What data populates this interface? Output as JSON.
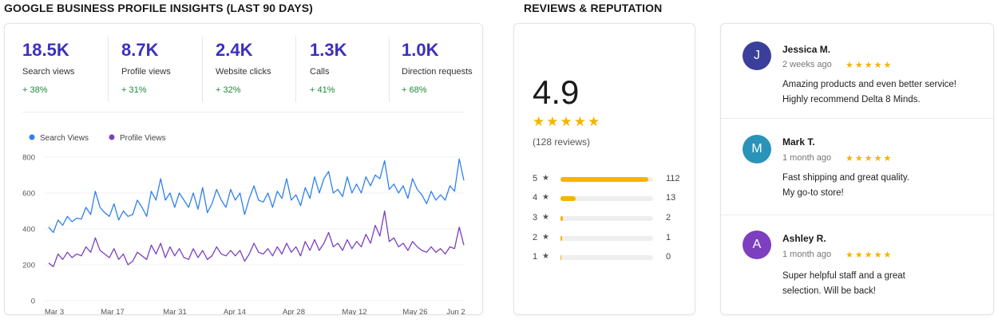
{
  "insights": {
    "title": "GOOGLE BUSINESS PROFILE INSIGHTS (LAST 90 DAYS)",
    "metrics": [
      {
        "value": "18.5K",
        "label": "Search views",
        "delta": "+ 38%"
      },
      {
        "value": "8.7K",
        "label": "Profile views",
        "delta": "+ 31%"
      },
      {
        "value": "2.4K",
        "label": "Website clicks",
        "delta": "+ 32%"
      },
      {
        "value": "1.3K",
        "label": "Calls",
        "delta": "+ 41%"
      },
      {
        "value": "1.0K",
        "label": "Direction requests",
        "delta": "+ 68%"
      }
    ],
    "colors": {
      "accent": "#3b2fbf",
      "positive": "#1e8a3a"
    }
  },
  "chart_data": {
    "type": "line",
    "title": "",
    "xlabel": "",
    "ylabel": "",
    "ylim": [
      0,
      800
    ],
    "yticks": [
      "0",
      "200",
      "400",
      "600",
      "800"
    ],
    "xticks": [
      "Mar 3",
      "Mar 17",
      "Mar 31",
      "Apr 14",
      "Apr 28",
      "May 12",
      "May 26",
      "Jun 2"
    ],
    "grid": true,
    "legend_position": "top-left",
    "series": [
      {
        "name": "Search Views",
        "color": "#2f80ed",
        "values": [
          410,
          380,
          450,
          420,
          470,
          440,
          460,
          455,
          520,
          480,
          610,
          520,
          490,
          470,
          540,
          450,
          500,
          470,
          480,
          560,
          520,
          470,
          610,
          560,
          680,
          560,
          600,
          520,
          600,
          560,
          520,
          600,
          510,
          630,
          490,
          540,
          620,
          560,
          520,
          620,
          560,
          600,
          480,
          570,
          640,
          560,
          550,
          600,
          520,
          610,
          570,
          680,
          560,
          590,
          530,
          630,
          570,
          690,
          600,
          680,
          720,
          600,
          620,
          580,
          690,
          600,
          650,
          600,
          690,
          640,
          700,
          680,
          780,
          620,
          650,
          600,
          640,
          570,
          680,
          620,
          590,
          540,
          610,
          560,
          590,
          560,
          640,
          610,
          790,
          670
        ]
      },
      {
        "name": "Profile Views",
        "color": "#7b3fbf",
        "values": [
          210,
          190,
          260,
          230,
          270,
          240,
          260,
          250,
          300,
          270,
          350,
          280,
          260,
          240,
          290,
          230,
          260,
          200,
          220,
          270,
          250,
          230,
          310,
          260,
          320,
          240,
          300,
          250,
          290,
          240,
          230,
          290,
          240,
          280,
          230,
          250,
          300,
          260,
          250,
          280,
          250,
          280,
          220,
          260,
          320,
          270,
          260,
          290,
          250,
          300,
          260,
          320,
          270,
          300,
          250,
          330,
          280,
          340,
          280,
          320,
          380,
          300,
          320,
          280,
          340,
          290,
          330,
          300,
          370,
          320,
          420,
          360,
          500,
          330,
          350,
          300,
          320,
          280,
          330,
          300,
          280,
          270,
          300,
          270,
          290,
          260,
          300,
          290,
          410,
          310
        ]
      }
    ]
  },
  "reputation": {
    "title": "REVIEWS & REPUTATION",
    "rating": "4.9",
    "stars": "★★★★★",
    "review_count": "(128 reviews)",
    "star_glyph": "★",
    "distribution": [
      {
        "stars": "5",
        "count": "112",
        "fraction": 0.95
      },
      {
        "stars": "4",
        "count": "13",
        "fraction": 0.16
      },
      {
        "stars": "3",
        "count": "2",
        "fraction": 0.03
      },
      {
        "stars": "2",
        "count": "1",
        "fraction": 0.015
      },
      {
        "stars": "1",
        "count": "0",
        "fraction": 0.012
      }
    ],
    "bar_color": "#f5b400"
  },
  "reviews": [
    {
      "initial": "J",
      "name": "Jessica M.",
      "date": "2 weeks ago",
      "stars": "★★★★★",
      "text_line1": "Amazing products and even better service!",
      "text_line2": "Highly recommend Delta 8 Minds.",
      "avatar_color": "#3a3f9c"
    },
    {
      "initial": "M",
      "name": "Mark T.",
      "date": "1 month ago",
      "stars": "★★★★★",
      "text_line1": "Fast shipping and great quality.",
      "text_line2": "My go-to store!",
      "avatar_color": "#2a93b8"
    },
    {
      "initial": "A",
      "name": "Ashley R.",
      "date": "1 month ago",
      "stars": "★★★★★",
      "text_line1": "Super helpful staff and a great",
      "text_line2": "selection. Will be back!",
      "avatar_color": "#7d3fbf"
    }
  ]
}
